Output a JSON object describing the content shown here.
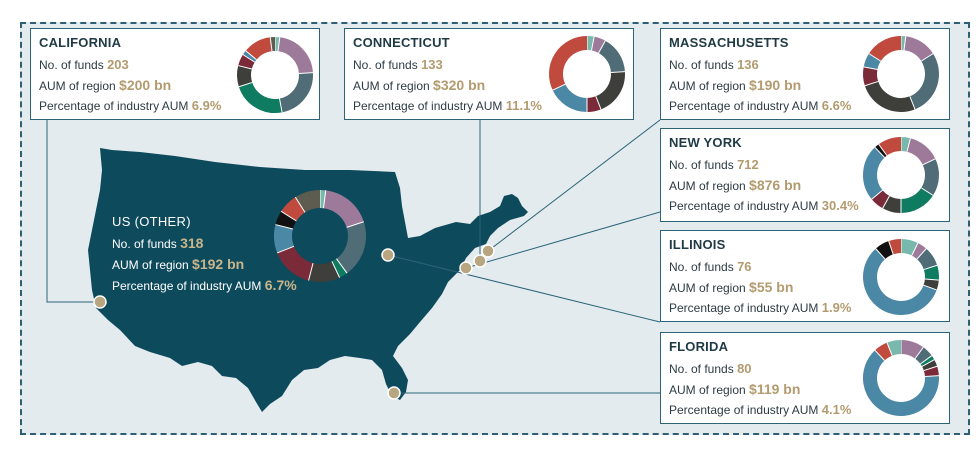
{
  "colors": {
    "map_fill": "#0d4a5c",
    "frame_bg": "#e3ebef",
    "frame_border": "#2f5f73",
    "card_border": "#2c6479",
    "value_gold": "#b39b6f",
    "marker": "#b7a67f",
    "donut_palette": {
      "teal": "#79b8ad",
      "mauve": "#9e7a9a",
      "slate": "#4f6c77",
      "green": "#0f7b60",
      "charcoal": "#3e3f3a",
      "maroon": "#7b2a3a",
      "red": "#c04a3e",
      "blue": "#4a88a6",
      "black": "#111111",
      "olive": "#5d5c50"
    }
  },
  "labels": {
    "funds": "No. of funds",
    "aum": "AUM of region",
    "pct": "Percentage of industry AUM"
  },
  "regions": [
    {
      "id": "california",
      "name": "CALIFORNIA",
      "funds": "203",
      "aum": "$200 bn",
      "pct": "6.9%",
      "donut": [
        {
          "color": "teal",
          "value": 2
        },
        {
          "color": "mauve",
          "value": 22
        },
        {
          "color": "slate",
          "value": 23
        },
        {
          "color": "green",
          "value": 23
        },
        {
          "color": "charcoal",
          "value": 9
        },
        {
          "color": "maroon",
          "value": 5
        },
        {
          "color": "blue",
          "value": 2
        },
        {
          "color": "red",
          "value": 12
        },
        {
          "color": "olive",
          "value": 2
        }
      ]
    },
    {
      "id": "connecticut",
      "name": "CONNECTICUT",
      "funds": "133",
      "aum": "$320 bn",
      "pct": "11.1%",
      "donut": [
        {
          "color": "teal",
          "value": 3
        },
        {
          "color": "mauve",
          "value": 5
        },
        {
          "color": "slate",
          "value": 16
        },
        {
          "color": "charcoal",
          "value": 20
        },
        {
          "color": "maroon",
          "value": 6
        },
        {
          "color": "blue",
          "value": 18
        },
        {
          "color": "red",
          "value": 32
        }
      ]
    },
    {
      "id": "massachusetts",
      "name": "MASSACHUSETTS",
      "funds": "136",
      "aum": "$190 bn",
      "pct": "6.6%",
      "donut": [
        {
          "color": "teal",
          "value": 2
        },
        {
          "color": "mauve",
          "value": 14
        },
        {
          "color": "slate",
          "value": 28
        },
        {
          "color": "charcoal",
          "value": 26
        },
        {
          "color": "maroon",
          "value": 8
        },
        {
          "color": "blue",
          "value": 6
        },
        {
          "color": "red",
          "value": 16
        }
      ]
    },
    {
      "id": "newyork",
      "name": "NEW YORK",
      "funds": "712",
      "aum": "$876 bn",
      "pct": "30.4%",
      "donut": [
        {
          "color": "teal",
          "value": 4
        },
        {
          "color": "mauve",
          "value": 14
        },
        {
          "color": "slate",
          "value": 16
        },
        {
          "color": "green",
          "value": 16
        },
        {
          "color": "charcoal",
          "value": 8
        },
        {
          "color": "maroon",
          "value": 6
        },
        {
          "color": "blue",
          "value": 24
        },
        {
          "color": "black",
          "value": 2
        },
        {
          "color": "red",
          "value": 10
        }
      ]
    },
    {
      "id": "illinois",
      "name": "ILLINOIS",
      "funds": "76",
      "aum": "$55 bn",
      "pct": "1.9%",
      "donut": [
        {
          "color": "teal",
          "value": 7
        },
        {
          "color": "mauve",
          "value": 4
        },
        {
          "color": "slate",
          "value": 8
        },
        {
          "color": "green",
          "value": 6
        },
        {
          "color": "charcoal",
          "value": 4
        },
        {
          "color": "blue",
          "value": 55
        },
        {
          "color": "black",
          "value": 6
        },
        {
          "color": "red",
          "value": 5
        }
      ]
    },
    {
      "id": "florida",
      "name": "FLORIDA",
      "funds": "80",
      "aum": "$119 bn",
      "pct": "4.1%",
      "donut": [
        {
          "color": "mauve",
          "value": 10
        },
        {
          "color": "slate",
          "value": 5
        },
        {
          "color": "green",
          "value": 2
        },
        {
          "color": "charcoal",
          "value": 3
        },
        {
          "color": "maroon",
          "value": 4
        },
        {
          "color": "blue",
          "value": 64
        },
        {
          "color": "red",
          "value": 6
        },
        {
          "color": "teal",
          "value": 6
        }
      ]
    },
    {
      "id": "usother",
      "name": "US (OTHER)",
      "funds": "318",
      "aum": "$192 bn",
      "pct": "6.7%",
      "donut": [
        {
          "color": "teal",
          "value": 2
        },
        {
          "color": "mauve",
          "value": 18
        },
        {
          "color": "slate",
          "value": 20
        },
        {
          "color": "green",
          "value": 3
        },
        {
          "color": "charcoal",
          "value": 11
        },
        {
          "color": "maroon",
          "value": 15
        },
        {
          "color": "blue",
          "value": 10
        },
        {
          "color": "black",
          "value": 5
        },
        {
          "color": "red",
          "value": 7
        },
        {
          "color": "olive",
          "value": 9
        }
      ]
    }
  ]
}
